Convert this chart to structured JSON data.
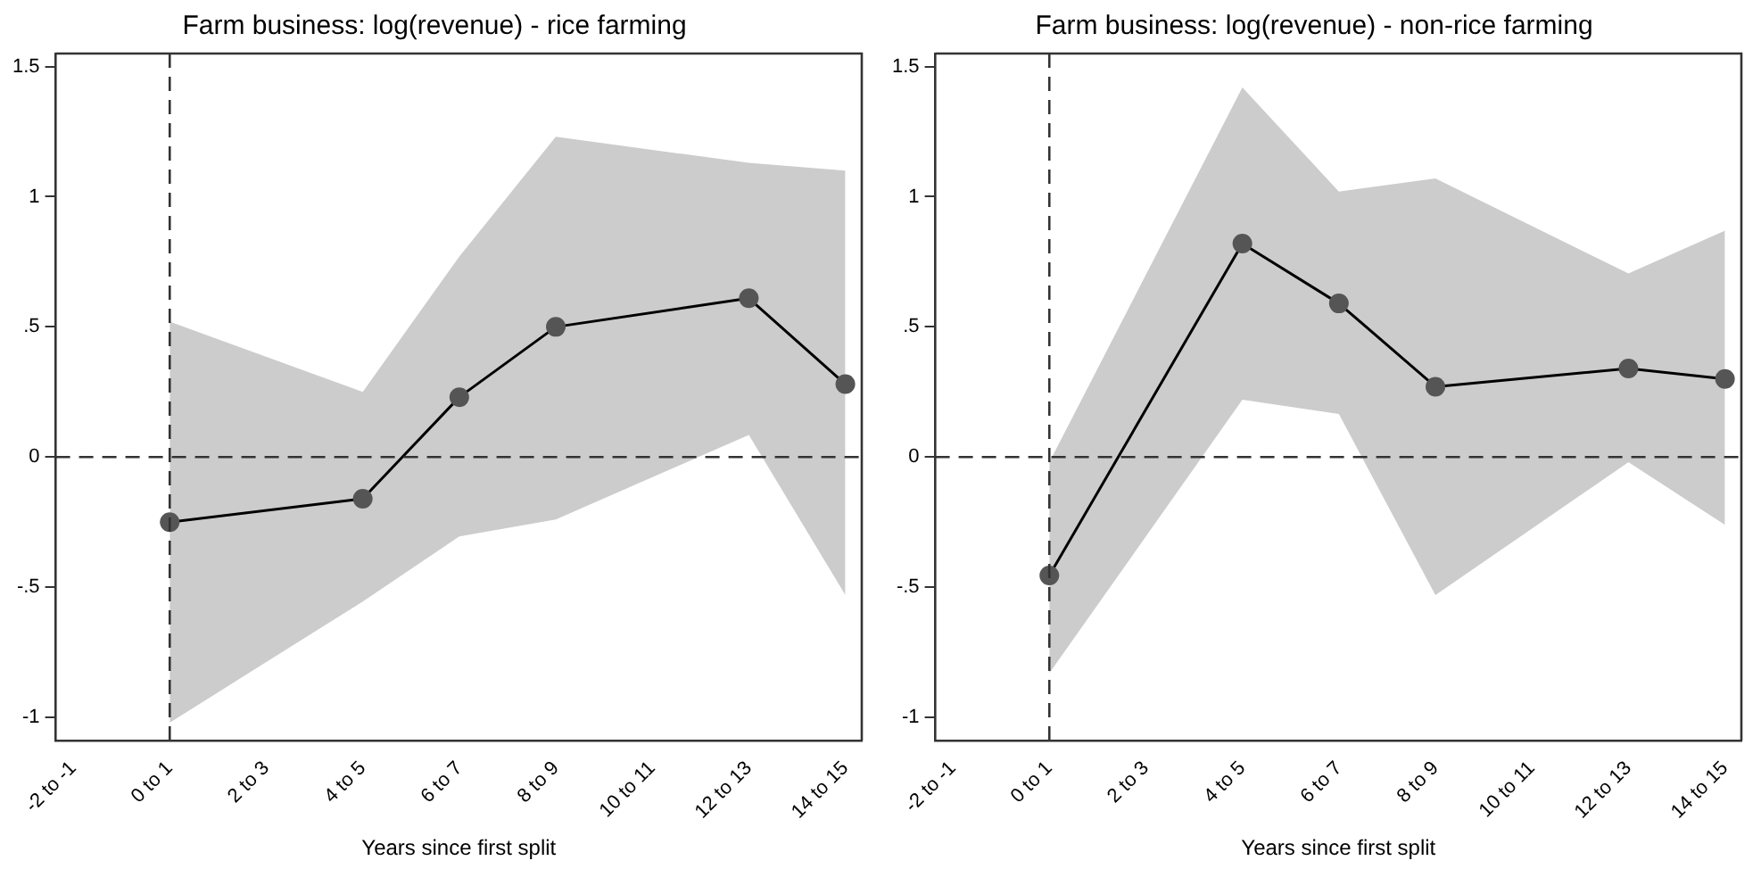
{
  "chart_data": [
    {
      "type": "line",
      "title": "Farm business: log(revenue) - rice farming",
      "xlabel": "Years since first split",
      "categories": [
        "-2 to -1",
        "0 to 1",
        "2 to 3",
        "4 to 5",
        "6 to 7",
        "8 to 9",
        "10 to 11",
        "12 to 13",
        "14 to 15"
      ],
      "series": [
        {
          "color": "#000000",
          "values": [
            null,
            -0.25,
            null,
            -0.16,
            0.23,
            0.5,
            null,
            0.61,
            0.28
          ],
          "lower": [
            null,
            -1.02,
            null,
            -0.555,
            -0.305,
            -0.24,
            null,
            0.085,
            -0.53
          ],
          "upper": [
            null,
            0.52,
            null,
            0.25,
            0.77,
            1.23,
            null,
            1.13,
            1.1
          ]
        }
      ],
      "ylim": [
        -1.09,
        1.55
      ],
      "yticks": [
        {
          "value": -1,
          "label": "-1"
        },
        {
          "value": -0.5,
          "label": "-.5"
        },
        0,
        {
          "value": 0.5,
          "label": ".5"
        },
        1,
        1.5
      ],
      "grid": false,
      "legend": false,
      "marker": "circle",
      "line_style": "solid",
      "ref_lines": [
        {
          "axis": "y",
          "value": 0,
          "line_style": "dashed"
        },
        {
          "axis": "x",
          "value": "0 to 1",
          "line_style": "dashed"
        }
      ]
    },
    {
      "type": "line",
      "title": "Farm business: log(revenue) - non-rice farming",
      "xlabel": "Years since first split",
      "categories": [
        "-2 to -1",
        "0 to 1",
        "2 to 3",
        "4 to 5",
        "6 to 7",
        "8 to 9",
        "10 to 11",
        "12 to 13",
        "14 to 15"
      ],
      "series": [
        {
          "color": "#000000",
          "values": [
            null,
            -0.455,
            null,
            0.82,
            0.59,
            0.27,
            null,
            0.34,
            0.3
          ],
          "lower": [
            null,
            -0.83,
            null,
            0.22,
            0.165,
            -0.53,
            null,
            -0.02,
            -0.26
          ],
          "upper": [
            null,
            -0.02,
            null,
            1.42,
            1.02,
            1.07,
            null,
            0.705,
            0.87
          ]
        }
      ],
      "ylim": [
        -1.09,
        1.55
      ],
      "yticks": [
        {
          "value": -1,
          "label": "-1"
        },
        {
          "value": -0.5,
          "label": "-.5"
        },
        0,
        {
          "value": 0.5,
          "label": ".5"
        },
        1,
        1.5
      ],
      "grid": false,
      "legend": false,
      "marker": "circle",
      "line_style": "solid",
      "ref_lines": [
        {
          "axis": "y",
          "value": 0,
          "line_style": "dashed"
        },
        {
          "axis": "x",
          "value": "0 to 1",
          "line_style": "dashed"
        }
      ]
    }
  ]
}
